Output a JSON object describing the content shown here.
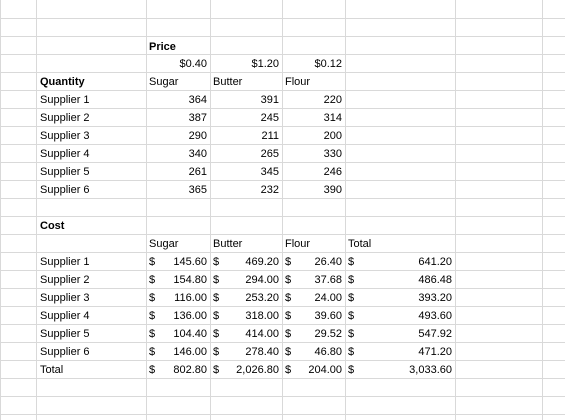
{
  "price_section": {
    "title": "Price",
    "prices": [
      "$0.40",
      "$1.20",
      "$0.12"
    ]
  },
  "quantity_section": {
    "title": "Quantity",
    "columns": [
      "Sugar",
      "Butter",
      "Flour"
    ],
    "rows": [
      {
        "supplier": "Supplier 1",
        "values": [
          "364",
          "391",
          "220"
        ]
      },
      {
        "supplier": "Supplier 2",
        "values": [
          "387",
          "245",
          "314"
        ]
      },
      {
        "supplier": "Supplier 3",
        "values": [
          "290",
          "211",
          "200"
        ]
      },
      {
        "supplier": "Supplier 4",
        "values": [
          "340",
          "265",
          "330"
        ]
      },
      {
        "supplier": "Supplier 5",
        "values": [
          "261",
          "345",
          "246"
        ]
      },
      {
        "supplier": "Supplier 6",
        "values": [
          "365",
          "232",
          "390"
        ]
      }
    ]
  },
  "cost_section": {
    "title": "Cost",
    "currency": "$",
    "columns": [
      "Sugar",
      "Butter",
      "Flour",
      "Total"
    ],
    "rows": [
      {
        "supplier": "Supplier 1",
        "values": [
          "145.60",
          "469.20",
          "26.40",
          "641.20"
        ]
      },
      {
        "supplier": "Supplier 2",
        "values": [
          "154.80",
          "294.00",
          "37.68",
          "486.48"
        ]
      },
      {
        "supplier": "Supplier 3",
        "values": [
          "116.00",
          "253.20",
          "24.00",
          "393.20"
        ]
      },
      {
        "supplier": "Supplier 4",
        "values": [
          "136.00",
          "318.00",
          "39.60",
          "493.60"
        ]
      },
      {
        "supplier": "Supplier 5",
        "values": [
          "104.40",
          "414.00",
          "29.52",
          "547.92"
        ]
      },
      {
        "supplier": "Supplier 6",
        "values": [
          "146.00",
          "278.40",
          "46.80",
          "471.20"
        ]
      },
      {
        "supplier": "Total",
        "values": [
          "802.80",
          "2,026.80",
          "204.00",
          "3,033.60"
        ]
      }
    ]
  }
}
